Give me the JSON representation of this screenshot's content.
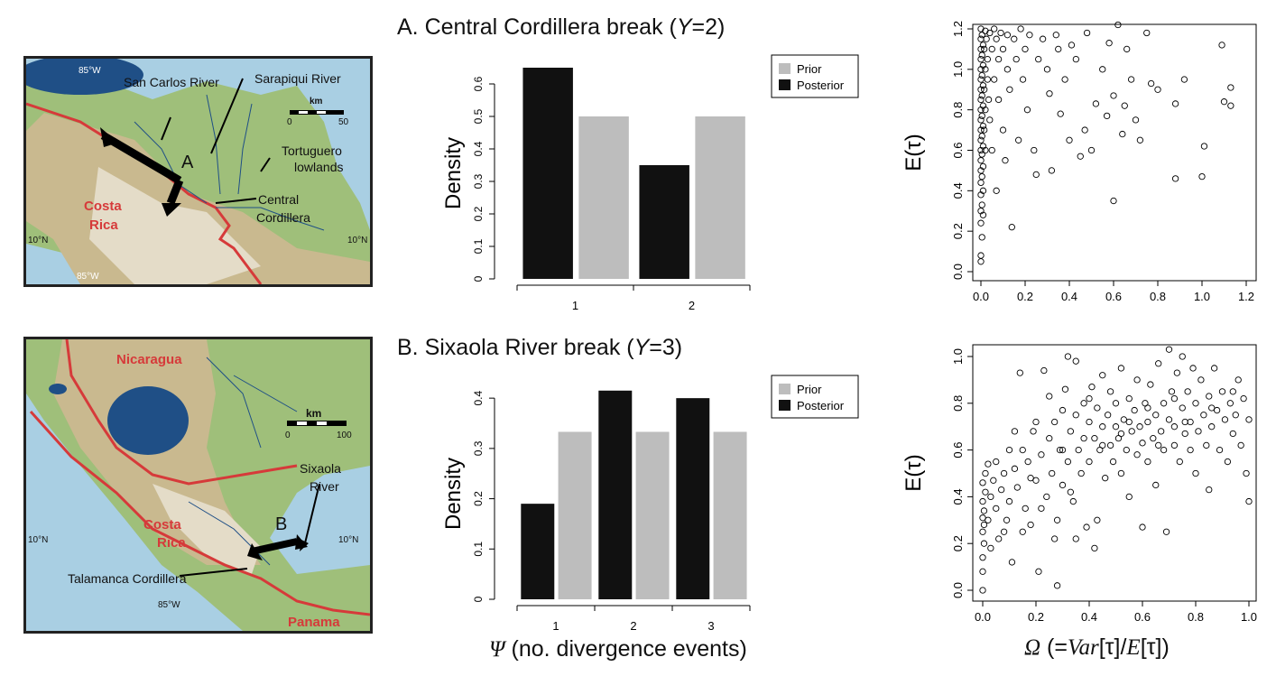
{
  "mapA": {
    "labels": {
      "lon_top": "85°W",
      "san_carlos": "San Carlos River",
      "sarapiqui": "Sarapiqui River",
      "km": "km",
      "scale_0": "0",
      "scale_50": "50",
      "tortuguero": "Tortuguero",
      "lowlands": "lowlands",
      "marker": "A",
      "central": "Central",
      "cordillera": "Cordillera",
      "costa": "Costa",
      "rica": "Rica",
      "lat_left": "10°N",
      "lat_right": "10°N",
      "lon_bottom": "85°W"
    }
  },
  "mapB": {
    "labels": {
      "nicaragua": "Nicaragua",
      "km": "km",
      "scale_0": "0",
      "scale_100": "100",
      "sixaola": "Sixaola",
      "river": "River",
      "marker": "B",
      "costa": "Costa",
      "rica": "Rica",
      "lat_left": "10°N",
      "lat_right": "10°N",
      "talamanca": "Talamanca Cordillera",
      "lon_bottom": "85°W",
      "panama": "Panama"
    }
  },
  "titles": {
    "a_prefix": "A. Central Cordillera break (",
    "a_var": "Y",
    "a_suffix": "=2)",
    "b_prefix": "B. Sixaola River break (",
    "b_var": "Y",
    "b_suffix": "=3)",
    "x_sym": "Ψ",
    "x_rest": " (no. divergence events)",
    "x2_sym": "Ω",
    "x2_mid": " (=",
    "x2_var": "Var",
    "x2_tau1": "[τ]/",
    "x2_e": "E",
    "x2_tau2": "[τ])"
  },
  "colors": {
    "prior": "#bdbdbd",
    "posterior": "#111111"
  },
  "chart_data": [
    {
      "id": "barA",
      "type": "bar",
      "categories": [
        "1",
        "2"
      ],
      "series": [
        {
          "name": "Posterior",
          "values": [
            0.65,
            0.35
          ]
        },
        {
          "name": "Prior",
          "values": [
            0.5,
            0.5
          ]
        }
      ],
      "ylabel": "Density",
      "ylim": [
        0,
        0.65
      ],
      "yticks": [
        "0",
        "0.1",
        "0.2",
        "0.3",
        "0.4",
        "0.5",
        "0.6"
      ],
      "legend": [
        "Prior",
        "Posterior"
      ],
      "legend_position": "top-right"
    },
    {
      "id": "barB",
      "type": "bar",
      "categories": [
        "1",
        "2",
        "3"
      ],
      "series": [
        {
          "name": "Posterior",
          "values": [
            0.19,
            0.415,
            0.4
          ]
        },
        {
          "name": "Prior",
          "values": [
            0.333,
            0.333,
            0.333
          ]
        }
      ],
      "ylabel": "Density",
      "ylim": [
        0,
        0.42
      ],
      "yticks": [
        "0",
        "0.1",
        "0.2",
        "0.3",
        "0.4"
      ],
      "legend": [
        "Prior",
        "Posterior"
      ],
      "legend_position": "top-right"
    },
    {
      "id": "scatterA",
      "type": "scatter",
      "ylabel": "E(τ)",
      "xlim": [
        0,
        1.2
      ],
      "ylim": [
        0,
        1.2
      ],
      "xticks": [
        "0.0",
        "0.2",
        "0.4",
        "0.6",
        "0.8",
        "1.0",
        "1.2"
      ],
      "yticks": [
        "0.0",
        "0.2",
        "0.4",
        "0.6",
        "0.8",
        "1.0",
        "1.2"
      ],
      "points": [
        [
          0.0,
          0.05
        ],
        [
          0.0,
          0.08
        ],
        [
          0.005,
          0.17
        ],
        [
          0.0,
          0.24
        ],
        [
          0.01,
          0.28
        ],
        [
          0.0,
          0.3
        ],
        [
          0.005,
          0.33
        ],
        [
          0.0,
          0.38
        ],
        [
          0.01,
          0.4
        ],
        [
          0.0,
          0.44
        ],
        [
          0.005,
          0.47
        ],
        [
          0.0,
          0.5
        ],
        [
          0.01,
          0.52
        ],
        [
          0.0,
          0.55
        ],
        [
          0.005,
          0.58
        ],
        [
          0.0,
          0.6
        ],
        [
          0.01,
          0.62
        ],
        [
          0.0,
          0.65
        ],
        [
          0.005,
          0.67
        ],
        [
          0.0,
          0.7
        ],
        [
          0.01,
          0.72
        ],
        [
          0.0,
          0.75
        ],
        [
          0.005,
          0.77
        ],
        [
          0.0,
          0.8
        ],
        [
          0.01,
          0.82
        ],
        [
          0.0,
          0.85
        ],
        [
          0.005,
          0.87
        ],
        [
          0.0,
          0.9
        ],
        [
          0.01,
          0.92
        ],
        [
          0.0,
          0.95
        ],
        [
          0.005,
          0.97
        ],
        [
          0.0,
          1.0
        ],
        [
          0.01,
          1.02
        ],
        [
          0.0,
          1.05
        ],
        [
          0.005,
          1.07
        ],
        [
          0.0,
          1.1
        ],
        [
          0.01,
          1.12
        ],
        [
          0.0,
          1.15
        ],
        [
          0.005,
          1.17
        ],
        [
          0.0,
          1.2
        ],
        [
          0.02,
          1.19
        ],
        [
          0.015,
          1.1
        ],
        [
          0.02,
          1.0
        ],
        [
          0.015,
          0.9
        ],
        [
          0.02,
          0.8
        ],
        [
          0.015,
          0.7
        ],
        [
          0.02,
          0.6
        ],
        [
          0.025,
          1.15
        ],
        [
          0.03,
          1.05
        ],
        [
          0.03,
          0.95
        ],
        [
          0.035,
          0.85
        ],
        [
          0.04,
          1.18
        ],
        [
          0.04,
          0.75
        ],
        [
          0.05,
          1.1
        ],
        [
          0.05,
          0.6
        ],
        [
          0.06,
          1.2
        ],
        [
          0.06,
          0.95
        ],
        [
          0.07,
          1.15
        ],
        [
          0.07,
          0.4
        ],
        [
          0.08,
          1.05
        ],
        [
          0.08,
          0.85
        ],
        [
          0.09,
          1.18
        ],
        [
          0.1,
          1.1
        ],
        [
          0.1,
          0.7
        ],
        [
          0.11,
          0.55
        ],
        [
          0.12,
          1.0
        ],
        [
          0.12,
          1.17
        ],
        [
          0.13,
          0.9
        ],
        [
          0.14,
          0.22
        ],
        [
          0.15,
          1.15
        ],
        [
          0.16,
          1.05
        ],
        [
          0.17,
          0.65
        ],
        [
          0.18,
          1.2
        ],
        [
          0.19,
          0.95
        ],
        [
          0.2,
          1.1
        ],
        [
          0.21,
          0.8
        ],
        [
          0.22,
          1.17
        ],
        [
          0.24,
          0.6
        ],
        [
          0.25,
          0.48
        ],
        [
          0.26,
          1.05
        ],
        [
          0.28,
          1.15
        ],
        [
          0.3,
          1.0
        ],
        [
          0.31,
          0.88
        ],
        [
          0.32,
          0.5
        ],
        [
          0.34,
          1.17
        ],
        [
          0.35,
          1.1
        ],
        [
          0.36,
          0.78
        ],
        [
          0.38,
          0.95
        ],
        [
          0.4,
          0.65
        ],
        [
          0.41,
          1.12
        ],
        [
          0.43,
          1.05
        ],
        [
          0.45,
          0.57
        ],
        [
          0.47,
          0.7
        ],
        [
          0.48,
          1.18
        ],
        [
          0.5,
          0.6
        ],
        [
          0.52,
          0.83
        ],
        [
          0.55,
          1.0
        ],
        [
          0.57,
          0.77
        ],
        [
          0.58,
          1.13
        ],
        [
          0.6,
          0.87
        ],
        [
          0.6,
          0.35
        ],
        [
          0.62,
          1.22
        ],
        [
          0.64,
          0.68
        ],
        [
          0.65,
          0.82
        ],
        [
          0.66,
          1.1
        ],
        [
          0.68,
          0.95
        ],
        [
          0.7,
          0.75
        ],
        [
          0.72,
          0.65
        ],
        [
          0.75,
          1.18
        ],
        [
          0.77,
          0.93
        ],
        [
          0.8,
          0.9
        ],
        [
          0.88,
          0.83
        ],
        [
          0.88,
          0.46
        ],
        [
          0.92,
          0.95
        ],
        [
          1.0,
          0.47
        ],
        [
          1.01,
          0.62
        ],
        [
          1.09,
          1.12
        ],
        [
          1.1,
          0.84
        ],
        [
          1.13,
          0.82
        ],
        [
          1.13,
          0.91
        ]
      ]
    },
    {
      "id": "scatterB",
      "type": "scatter",
      "ylabel": "E(τ)",
      "xlim": [
        0,
        1.0
      ],
      "ylim": [
        0,
        1.0
      ],
      "xticks": [
        "0.0",
        "0.2",
        "0.4",
        "0.6",
        "0.8",
        "1.0"
      ],
      "yticks": [
        "0.0",
        "0.2",
        "0.4",
        "0.6",
        "0.8",
        "1.0"
      ],
      "points": [
        [
          0.0,
          0.0
        ],
        [
          0.0,
          0.08
        ],
        [
          0.0,
          0.14
        ],
        [
          0.005,
          0.2
        ],
        [
          0.0,
          0.25
        ],
        [
          0.005,
          0.28
        ],
        [
          0.0,
          0.31
        ],
        [
          0.005,
          0.34
        ],
        [
          0.0,
          0.38
        ],
        [
          0.01,
          0.42
        ],
        [
          0.0,
          0.46
        ],
        [
          0.01,
          0.5
        ],
        [
          0.02,
          0.54
        ],
        [
          0.02,
          0.3
        ],
        [
          0.03,
          0.4
        ],
        [
          0.03,
          0.18
        ],
        [
          0.04,
          0.47
        ],
        [
          0.05,
          0.35
        ],
        [
          0.05,
          0.55
        ],
        [
          0.06,
          0.22
        ],
        [
          0.07,
          0.43
        ],
        [
          0.08,
          0.5
        ],
        [
          0.09,
          0.3
        ],
        [
          0.1,
          0.6
        ],
        [
          0.1,
          0.38
        ],
        [
          0.11,
          0.12
        ],
        [
          0.12,
          0.52
        ],
        [
          0.13,
          0.44
        ],
        [
          0.14,
          0.93
        ],
        [
          0.15,
          0.6
        ],
        [
          0.16,
          0.35
        ],
        [
          0.17,
          0.55
        ],
        [
          0.18,
          0.28
        ],
        [
          0.19,
          0.68
        ],
        [
          0.2,
          0.47
        ],
        [
          0.2,
          0.72
        ],
        [
          0.21,
          0.08
        ],
        [
          0.22,
          0.58
        ],
        [
          0.23,
          0.94
        ],
        [
          0.24,
          0.4
        ],
        [
          0.25,
          0.65
        ],
        [
          0.25,
          0.83
        ],
        [
          0.26,
          0.5
        ],
        [
          0.27,
          0.72
        ],
        [
          0.28,
          0.3
        ],
        [
          0.28,
          0.02
        ],
        [
          0.29,
          0.6
        ],
        [
          0.3,
          0.77
        ],
        [
          0.3,
          0.45
        ],
        [
          0.31,
          0.86
        ],
        [
          0.32,
          0.55
        ],
        [
          0.32,
          1.0
        ],
        [
          0.33,
          0.68
        ],
        [
          0.34,
          0.38
        ],
        [
          0.35,
          0.75
        ],
        [
          0.35,
          0.98
        ],
        [
          0.36,
          0.6
        ],
        [
          0.37,
          0.5
        ],
        [
          0.38,
          0.8
        ],
        [
          0.38,
          0.65
        ],
        [
          0.39,
          0.27
        ],
        [
          0.4,
          0.72
        ],
        [
          0.4,
          0.55
        ],
        [
          0.41,
          0.87
        ],
        [
          0.42,
          0.65
        ],
        [
          0.42,
          0.18
        ],
        [
          0.43,
          0.78
        ],
        [
          0.44,
          0.6
        ],
        [
          0.45,
          0.7
        ],
        [
          0.45,
          0.92
        ],
        [
          0.46,
          0.48
        ],
        [
          0.47,
          0.75
        ],
        [
          0.48,
          0.62
        ],
        [
          0.48,
          0.85
        ],
        [
          0.49,
          0.55
        ],
        [
          0.5,
          0.7
        ],
        [
          0.5,
          0.8
        ],
        [
          0.51,
          0.65
        ],
        [
          0.52,
          0.95
        ],
        [
          0.52,
          0.5
        ],
        [
          0.53,
          0.73
        ],
        [
          0.54,
          0.6
        ],
        [
          0.55,
          0.82
        ],
        [
          0.55,
          0.4
        ],
        [
          0.56,
          0.68
        ],
        [
          0.57,
          0.77
        ],
        [
          0.58,
          0.58
        ],
        [
          0.58,
          0.9
        ],
        [
          0.59,
          0.7
        ],
        [
          0.6,
          0.63
        ],
        [
          0.6,
          0.27
        ],
        [
          0.61,
          0.8
        ],
        [
          0.62,
          0.72
        ],
        [
          0.62,
          0.55
        ],
        [
          0.63,
          0.88
        ],
        [
          0.64,
          0.65
        ],
        [
          0.65,
          0.75
        ],
        [
          0.65,
          0.45
        ],
        [
          0.66,
          0.97
        ],
        [
          0.67,
          0.68
        ],
        [
          0.68,
          0.8
        ],
        [
          0.68,
          0.6
        ],
        [
          0.69,
          0.25
        ],
        [
          0.7,
          0.73
        ],
        [
          0.7,
          1.03
        ],
        [
          0.71,
          0.85
        ],
        [
          0.72,
          0.62
        ],
        [
          0.72,
          0.7
        ],
        [
          0.73,
          0.93
        ],
        [
          0.74,
          0.55
        ],
        [
          0.75,
          0.78
        ],
        [
          0.75,
          1.0
        ],
        [
          0.76,
          0.67
        ],
        [
          0.77,
          0.85
        ],
        [
          0.78,
          0.6
        ],
        [
          0.78,
          0.72
        ],
        [
          0.79,
          0.95
        ],
        [
          0.8,
          0.8
        ],
        [
          0.8,
          0.5
        ],
        [
          0.81,
          0.68
        ],
        [
          0.82,
          0.9
        ],
        [
          0.83,
          0.75
        ],
        [
          0.84,
          0.62
        ],
        [
          0.85,
          0.83
        ],
        [
          0.85,
          0.43
        ],
        [
          0.86,
          0.7
        ],
        [
          0.87,
          0.95
        ],
        [
          0.88,
          0.77
        ],
        [
          0.89,
          0.6
        ],
        [
          0.9,
          0.85
        ],
        [
          0.91,
          0.73
        ],
        [
          0.92,
          0.55
        ],
        [
          0.93,
          0.8
        ],
        [
          0.94,
          0.67
        ],
        [
          0.95,
          0.75
        ],
        [
          0.96,
          0.9
        ],
        [
          0.97,
          0.62
        ],
        [
          0.98,
          0.82
        ],
        [
          0.99,
          0.5
        ],
        [
          1.0,
          0.73
        ],
        [
          1.0,
          0.38
        ],
        [
          0.15,
          0.25
        ],
        [
          0.22,
          0.35
        ],
        [
          0.35,
          0.22
        ],
        [
          0.43,
          0.3
        ],
        [
          0.12,
          0.68
        ],
        [
          0.18,
          0.48
        ],
        [
          0.27,
          0.22
        ],
        [
          0.33,
          0.42
        ],
        [
          0.08,
          0.25
        ],
        [
          0.45,
          0.62
        ],
        [
          0.55,
          0.72
        ],
        [
          0.62,
          0.78
        ],
        [
          0.72,
          0.82
        ],
        [
          0.52,
          0.67
        ],
        [
          0.66,
          0.62
        ],
        [
          0.76,
          0.72
        ],
        [
          0.86,
          0.78
        ],
        [
          0.94,
          0.85
        ],
        [
          0.4,
          0.82
        ],
        [
          0.3,
          0.6
        ]
      ]
    }
  ]
}
